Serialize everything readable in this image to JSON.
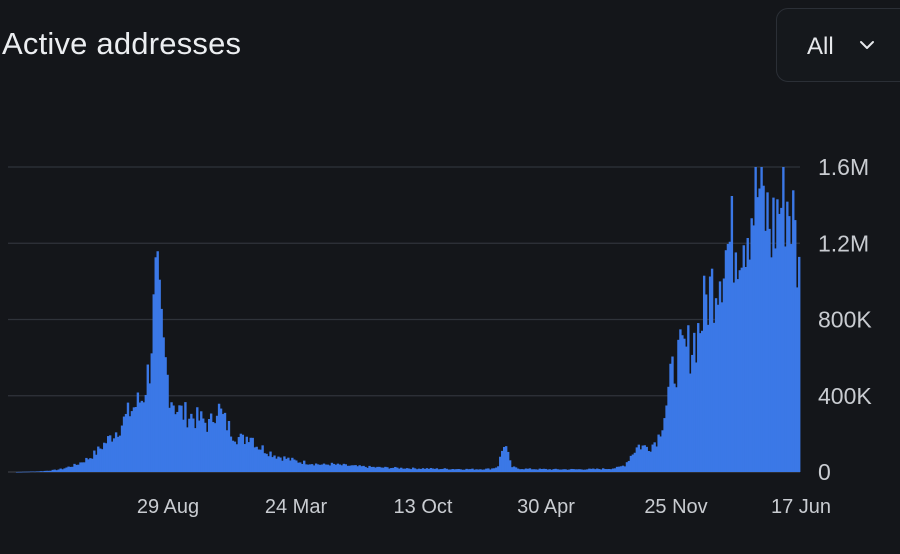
{
  "header": {
    "title": "Active addresses",
    "range_select": {
      "value": "All",
      "icon": "chevron-down-icon"
    }
  },
  "colors": {
    "background": "#14161a",
    "bar": "#3b78e7",
    "grid": "#2f333a",
    "text": "#c9ccd1"
  },
  "chart_data": {
    "type": "bar",
    "title": "Active addresses",
    "xlabel": "",
    "ylabel": "",
    "ylim": [
      0,
      1600000
    ],
    "y_ticks": [
      {
        "value": 0,
        "label": "0"
      },
      {
        "value": 400000,
        "label": "400K"
      },
      {
        "value": 800000,
        "label": "800K"
      },
      {
        "value": 1200000,
        "label": "1.2M"
      },
      {
        "value": 1600000,
        "label": "1.6M"
      }
    ],
    "x_ticks": [
      "29 Aug",
      "24 Mar",
      "13 Oct",
      "30 Apr",
      "25 Nov",
      "17 Jun"
    ],
    "grid": true,
    "y_axis_position": "right",
    "series": [
      {
        "values": [
          0,
          0,
          1000,
          2000,
          3000,
          5000,
          8000,
          12000,
          18000,
          30000,
          40000,
          60000,
          80000,
          110000,
          150000,
          190000,
          230000,
          280000,
          340000,
          380000,
          420000,
          600000,
          1100000,
          700000,
          450000,
          360000,
          330000,
          320000,
          300000,
          290000,
          260000,
          380000,
          300000,
          240000,
          200000,
          180000,
          220000,
          150000,
          130000,
          110000,
          90000,
          80000,
          70000,
          60000,
          55000,
          50000,
          45000,
          40000,
          45000,
          40000,
          38000,
          35000,
          32000,
          30000,
          28000,
          26000,
          25000,
          24000,
          23000,
          22000,
          21000,
          20000,
          20000,
          19000,
          18000,
          18000,
          17000,
          17000,
          16000,
          16000,
          16000,
          17000,
          18000,
          30000,
          170000,
          30000,
          20000,
          18000,
          17000,
          16000,
          16000,
          15000,
          15000,
          15000,
          15000,
          15000,
          16000,
          16000,
          17000,
          18000,
          20000,
          25000,
          40000,
          100000,
          150000,
          140000,
          150000,
          200000,
          350000,
          550000,
          650000,
          680000,
          720000,
          800000,
          950000,
          1050000,
          1150000,
          1250000,
          1300000,
          1350000,
          1400000,
          1500000,
          1600000,
          1450000,
          1350000,
          1500000,
          1550000,
          1450000,
          1100000
        ]
      }
    ]
  }
}
